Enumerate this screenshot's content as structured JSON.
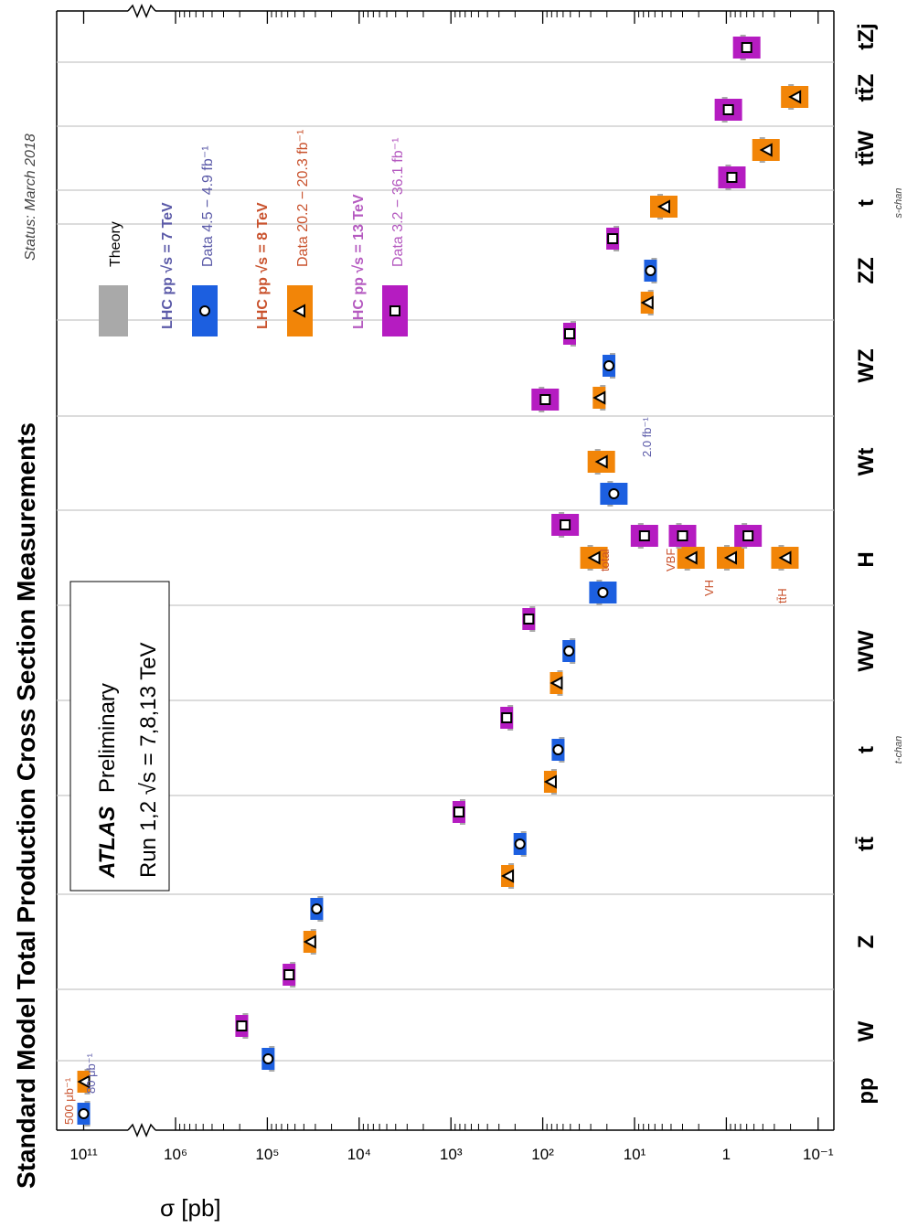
{
  "chart_data": {
    "type": "scatter",
    "title": "Standard Model Total Production Cross Section Measurements",
    "status": "Status: March 2018",
    "ylabel": "σ [pb]",
    "yscale": "log",
    "ylim": [
      0.07,
      300000000000
    ],
    "y_axis_break": "between 10^6 and 10^11",
    "grid": "category separators",
    "ticks": [
      {
        "label": "10¹¹",
        "value": 100000000000
      },
      {
        "label": "10⁶",
        "value": 1000000
      },
      {
        "label": "10⁵",
        "value": 100000
      },
      {
        "label": "10⁴",
        "value": 10000
      },
      {
        "label": "10³",
        "value": 1000
      },
      {
        "label": "10²",
        "value": 100
      },
      {
        "label": "10¹",
        "value": 10
      },
      {
        "label": "1",
        "value": 1
      },
      {
        "label": "10⁻¹",
        "value": 0.1
      }
    ],
    "categories": [
      "pp",
      "W",
      "Z",
      "tt̄",
      "t",
      "WW",
      "H",
      "Wt",
      "WZ",
      "ZZ",
      "t",
      "tt̄W",
      "tt̄Z",
      "tZj"
    ],
    "category_sublabels": {
      "t_t-channel": "t-chan",
      "t_s-channel": "s-chan"
    },
    "atlas_box": {
      "line1_bold": "ATLAS",
      "line1_rest": "Preliminary",
      "line2": "Run 1,2  √s = 7,8,13 TeV"
    },
    "legend": {
      "placement": "top-right",
      "theory": "Theory",
      "entries": [
        {
          "title": "LHC pp  √s = 7 TeV",
          "data": "Data  4.5 − 4.9 fb⁻¹",
          "color": "#1c5fe0",
          "marker": "circle"
        },
        {
          "title": "LHC pp  √s = 8 TeV",
          "data": "Data  20.2 − 20.3 fb⁻¹",
          "color": "#f28508",
          "marker": "triangle"
        },
        {
          "title": "LHC pp  √s = 13 TeV",
          "data": "Data  3.2 − 36.1 fb⁻¹",
          "color": "#b51cc1",
          "marker": "square"
        }
      ]
    },
    "annotations": [
      "500 μb⁻¹",
      "80 μb⁻¹",
      "2.0 fb⁻¹",
      "total",
      "VBF",
      "VH",
      "tt̄H"
    ],
    "series": [
      {
        "name": "7 TeV",
        "points": [
          {
            "x": "pp",
            "y": 98300000000
          },
          {
            "x": "W",
            "y": 98000
          },
          {
            "x": "Z",
            "y": 29000
          },
          {
            "x": "tt̄",
            "y": 177
          },
          {
            "x": "t",
            "y": 68
          },
          {
            "x": "WW",
            "y": 51.9
          },
          {
            "x": "H",
            "y": 22.1
          },
          {
            "x": "Wt",
            "y": 16.8
          },
          {
            "x": "WZ",
            "y": 19.0
          },
          {
            "x": "ZZ",
            "y": 6.7
          }
        ]
      },
      {
        "name": "8 TeV",
        "points": [
          {
            "x": "pp",
            "y": 96000000000
          },
          {
            "x": "Z",
            "y": 34500
          },
          {
            "x": "tt̄",
            "y": 242
          },
          {
            "x": "t",
            "y": 82.6
          },
          {
            "x": "WW",
            "y": 71.1
          },
          {
            "x": "H",
            "label": "total",
            "y": 27.7
          },
          {
            "x": "H",
            "label": "VBF",
            "y": 2.43
          },
          {
            "x": "H",
            "label": "VH",
            "y": 0.9
          },
          {
            "x": "H",
            "label": "tt̄H",
            "y": 0.23
          },
          {
            "x": "Wt",
            "y": 23
          },
          {
            "x": "WZ",
            "y": 24.3
          },
          {
            "x": "ZZ",
            "y": 7.3
          },
          {
            "x": "t",
            "label": "s-chan",
            "y": 4.8
          },
          {
            "x": "tt̄W",
            "y": 0.37
          },
          {
            "x": "tt̄Z",
            "y": 0.18
          }
        ]
      },
      {
        "name": "13 TeV",
        "points": [
          {
            "x": "W",
            "y": 190000
          },
          {
            "x": "Z",
            "y": 58000
          },
          {
            "x": "tt̄",
            "y": 818
          },
          {
            "x": "t",
            "y": 247
          },
          {
            "x": "WW",
            "y": 142
          },
          {
            "x": "H",
            "y": 57
          },
          {
            "x": "H",
            "label": "VBF",
            "y": 7.8
          },
          {
            "x": "H",
            "label": "VH",
            "y": 3.0
          },
          {
            "x": "H",
            "label": "tt̄H",
            "y": 0.58
          },
          {
            "x": "Wt",
            "y": 94
          },
          {
            "x": "WZ",
            "y": 51
          },
          {
            "x": "ZZ",
            "y": 17.3
          },
          {
            "x": "tt̄W",
            "y": 0.87
          },
          {
            "x": "tt̄Z",
            "y": 0.95
          },
          {
            "x": "tZj",
            "y": 0.6
          }
        ]
      }
    ]
  }
}
